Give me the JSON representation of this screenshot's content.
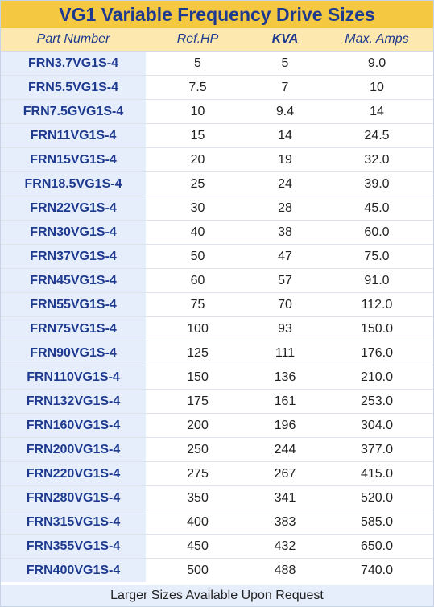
{
  "title": "VG1 Variable Frequency Drive Sizes",
  "headers": [
    "Part Number",
    "Ref.HP",
    "KVA",
    "Max. Amps"
  ],
  "rows": [
    [
      "FRN3.7VG1S-4",
      "5",
      "5",
      "9.0"
    ],
    [
      "FRN5.5VG1S-4",
      "7.5",
      "7",
      "10"
    ],
    [
      "FRN7.5GVG1S-4",
      "10",
      "9.4",
      "14"
    ],
    [
      "FRN11VG1S-4",
      "15",
      "14",
      "24.5"
    ],
    [
      "FRN15VG1S-4",
      "20",
      "19",
      "32.0"
    ],
    [
      "FRN18.5VG1S-4",
      "25",
      "24",
      "39.0"
    ],
    [
      "FRN22VG1S-4",
      "30",
      "28",
      "45.0"
    ],
    [
      "FRN30VG1S-4",
      "40",
      "38",
      "60.0"
    ],
    [
      "FRN37VG1S-4",
      "50",
      "47",
      "75.0"
    ],
    [
      "FRN45VG1S-4",
      "60",
      "57",
      "91.0"
    ],
    [
      "FRN55VG1S-4",
      "75",
      "70",
      "112.0"
    ],
    [
      "FRN75VG1S-4",
      "100",
      "93",
      "150.0"
    ],
    [
      "FRN90VG1S-4",
      "125",
      "111",
      "176.0"
    ],
    [
      "FRN110VG1S-4",
      "150",
      "136",
      "210.0"
    ],
    [
      "FRN132VG1S-4",
      "175",
      "161",
      "253.0"
    ],
    [
      "FRN160VG1S-4",
      "200",
      "196",
      "304.0"
    ],
    [
      "FRN200VG1S-4",
      "250",
      "244",
      "377.0"
    ],
    [
      "FRN220VG1S-4",
      "275",
      "267",
      "415.0"
    ],
    [
      "FRN280VG1S-4",
      "350",
      "341",
      "520.0"
    ],
    [
      "FRN315VG1S-4",
      "400",
      "383",
      "585.0"
    ],
    [
      "FRN355VG1S-4",
      "450",
      "432",
      "650.0"
    ],
    [
      "FRN400VG1S-4",
      "500",
      "488",
      "740.0"
    ]
  ],
  "footer": "Larger Sizes Available Upon Request",
  "colors": {
    "title_bg": "#f5c842",
    "header_bg": "#fde9b0",
    "part_col_bg": "#e6eefc",
    "accent_text": "#1e3a8f"
  }
}
